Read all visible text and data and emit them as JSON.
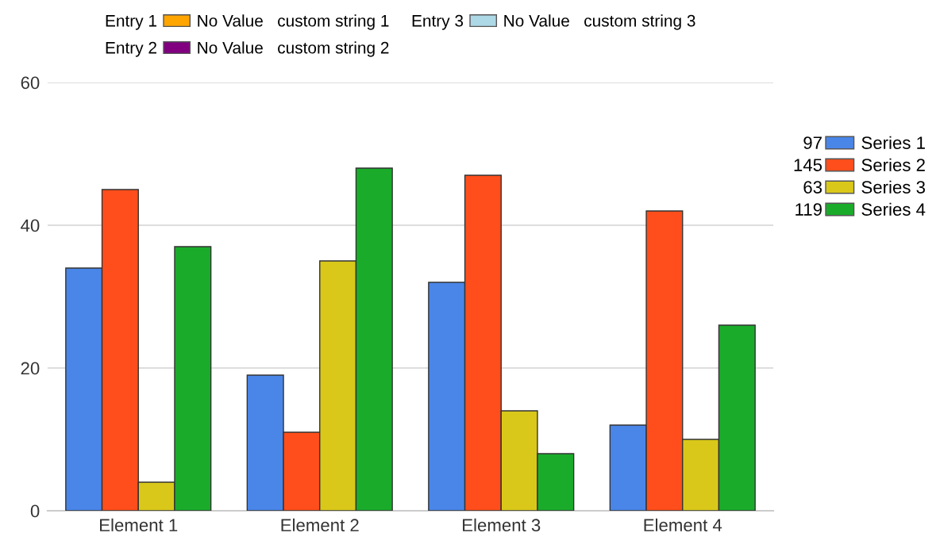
{
  "chart_data": {
    "type": "bar",
    "categories": [
      "Element 1",
      "Element 2",
      "Element 3",
      "Element 4"
    ],
    "series": [
      {
        "name": "Series 1",
        "color": "#4a86e8",
        "values": [
          34,
          19,
          32,
          12
        ]
      },
      {
        "name": "Series 2",
        "color": "#ff4e1b",
        "values": [
          45,
          11,
          47,
          42
        ]
      },
      {
        "name": "Series 3",
        "color": "#d9c81a",
        "values": [
          4,
          35,
          14,
          10
        ]
      },
      {
        "name": "Series 4",
        "color": "#1aab2b",
        "values": [
          37,
          48,
          8,
          26
        ]
      },
      {
        "name": "No Value   custom string 1",
        "color": "#ffa500",
        "values": [
          null,
          null,
          null,
          null
        ]
      },
      {
        "name": "No Value   custom string 2",
        "color": "#800080",
        "values": [
          null,
          null,
          null,
          null
        ]
      },
      {
        "name": "No Value   custom string 3",
        "color": "#add8e6",
        "values": [
          null,
          null,
          null,
          null
        ]
      }
    ],
    "annotations": [
      "97",
      "145",
      "63",
      "119",
      "Entry 1",
      "Entry 2",
      "Entry 3"
    ],
    "ylim": [
      0,
      60
    ],
    "yticks": [
      0,
      20,
      40,
      60
    ],
    "grid": "y",
    "legend": "right"
  }
}
